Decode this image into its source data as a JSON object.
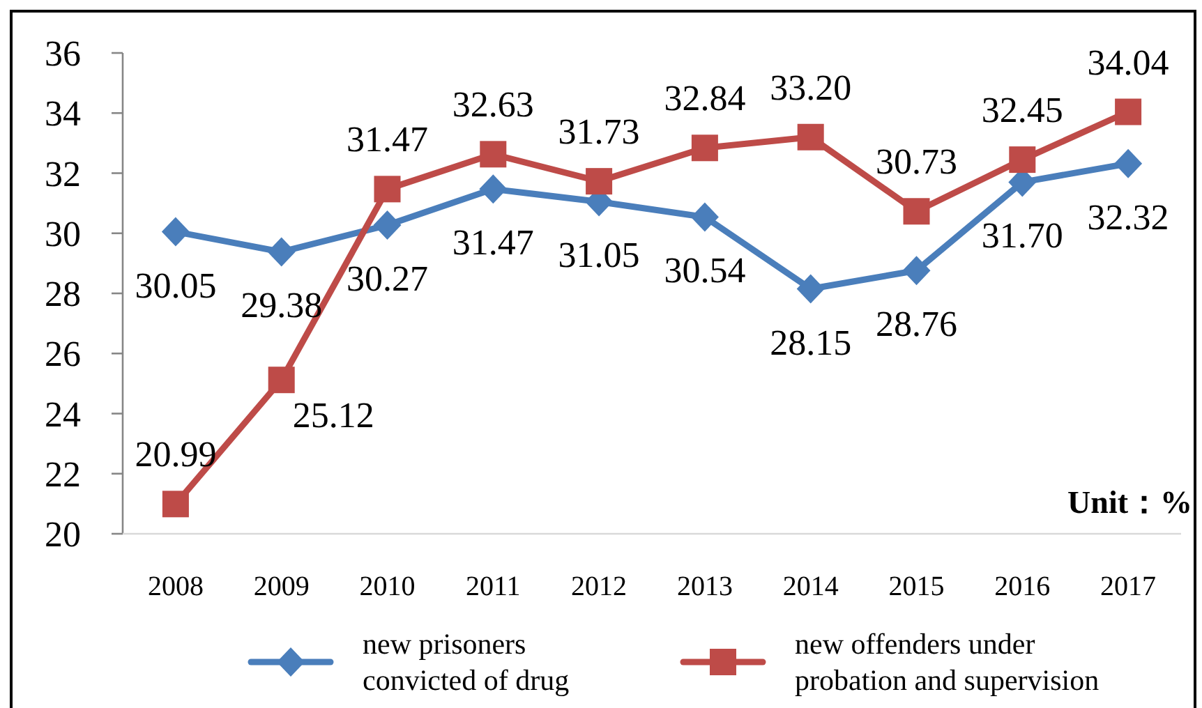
{
  "chart_data": {
    "type": "line",
    "categories": [
      "2008",
      "2009",
      "2010",
      "2011",
      "2012",
      "2013",
      "2014",
      "2015",
      "2016",
      "2017"
    ],
    "series": [
      {
        "name": "new prisoners convicted of drug",
        "color": "#4a7ebb",
        "marker": "diamond",
        "values": [
          30.05,
          29.38,
          30.27,
          31.47,
          31.05,
          30.54,
          28.15,
          28.76,
          31.7,
          32.32
        ],
        "value_labels": [
          "30.05",
          "29.38",
          "30.27",
          "31.47",
          "31.05",
          "30.54",
          "28.15",
          "28.76",
          "31.70",
          "32.32"
        ]
      },
      {
        "name": "new offenders under probation and supervision",
        "color": "#be4b48",
        "marker": "square",
        "values": [
          20.99,
          25.12,
          31.47,
          32.63,
          31.73,
          32.84,
          33.2,
          30.73,
          32.45,
          34.04
        ],
        "value_labels": [
          "20.99",
          "25.12",
          "31.47",
          "32.63",
          "31.73",
          "32.84",
          "33.20",
          "30.73",
          "32.45",
          "34.04"
        ]
      }
    ],
    "ylim": [
      20,
      36
    ],
    "yticks": [
      20,
      22,
      24,
      26,
      28,
      30,
      32,
      34,
      36
    ],
    "legend": "bottom",
    "annotations": [
      "Unit：%"
    ]
  }
}
